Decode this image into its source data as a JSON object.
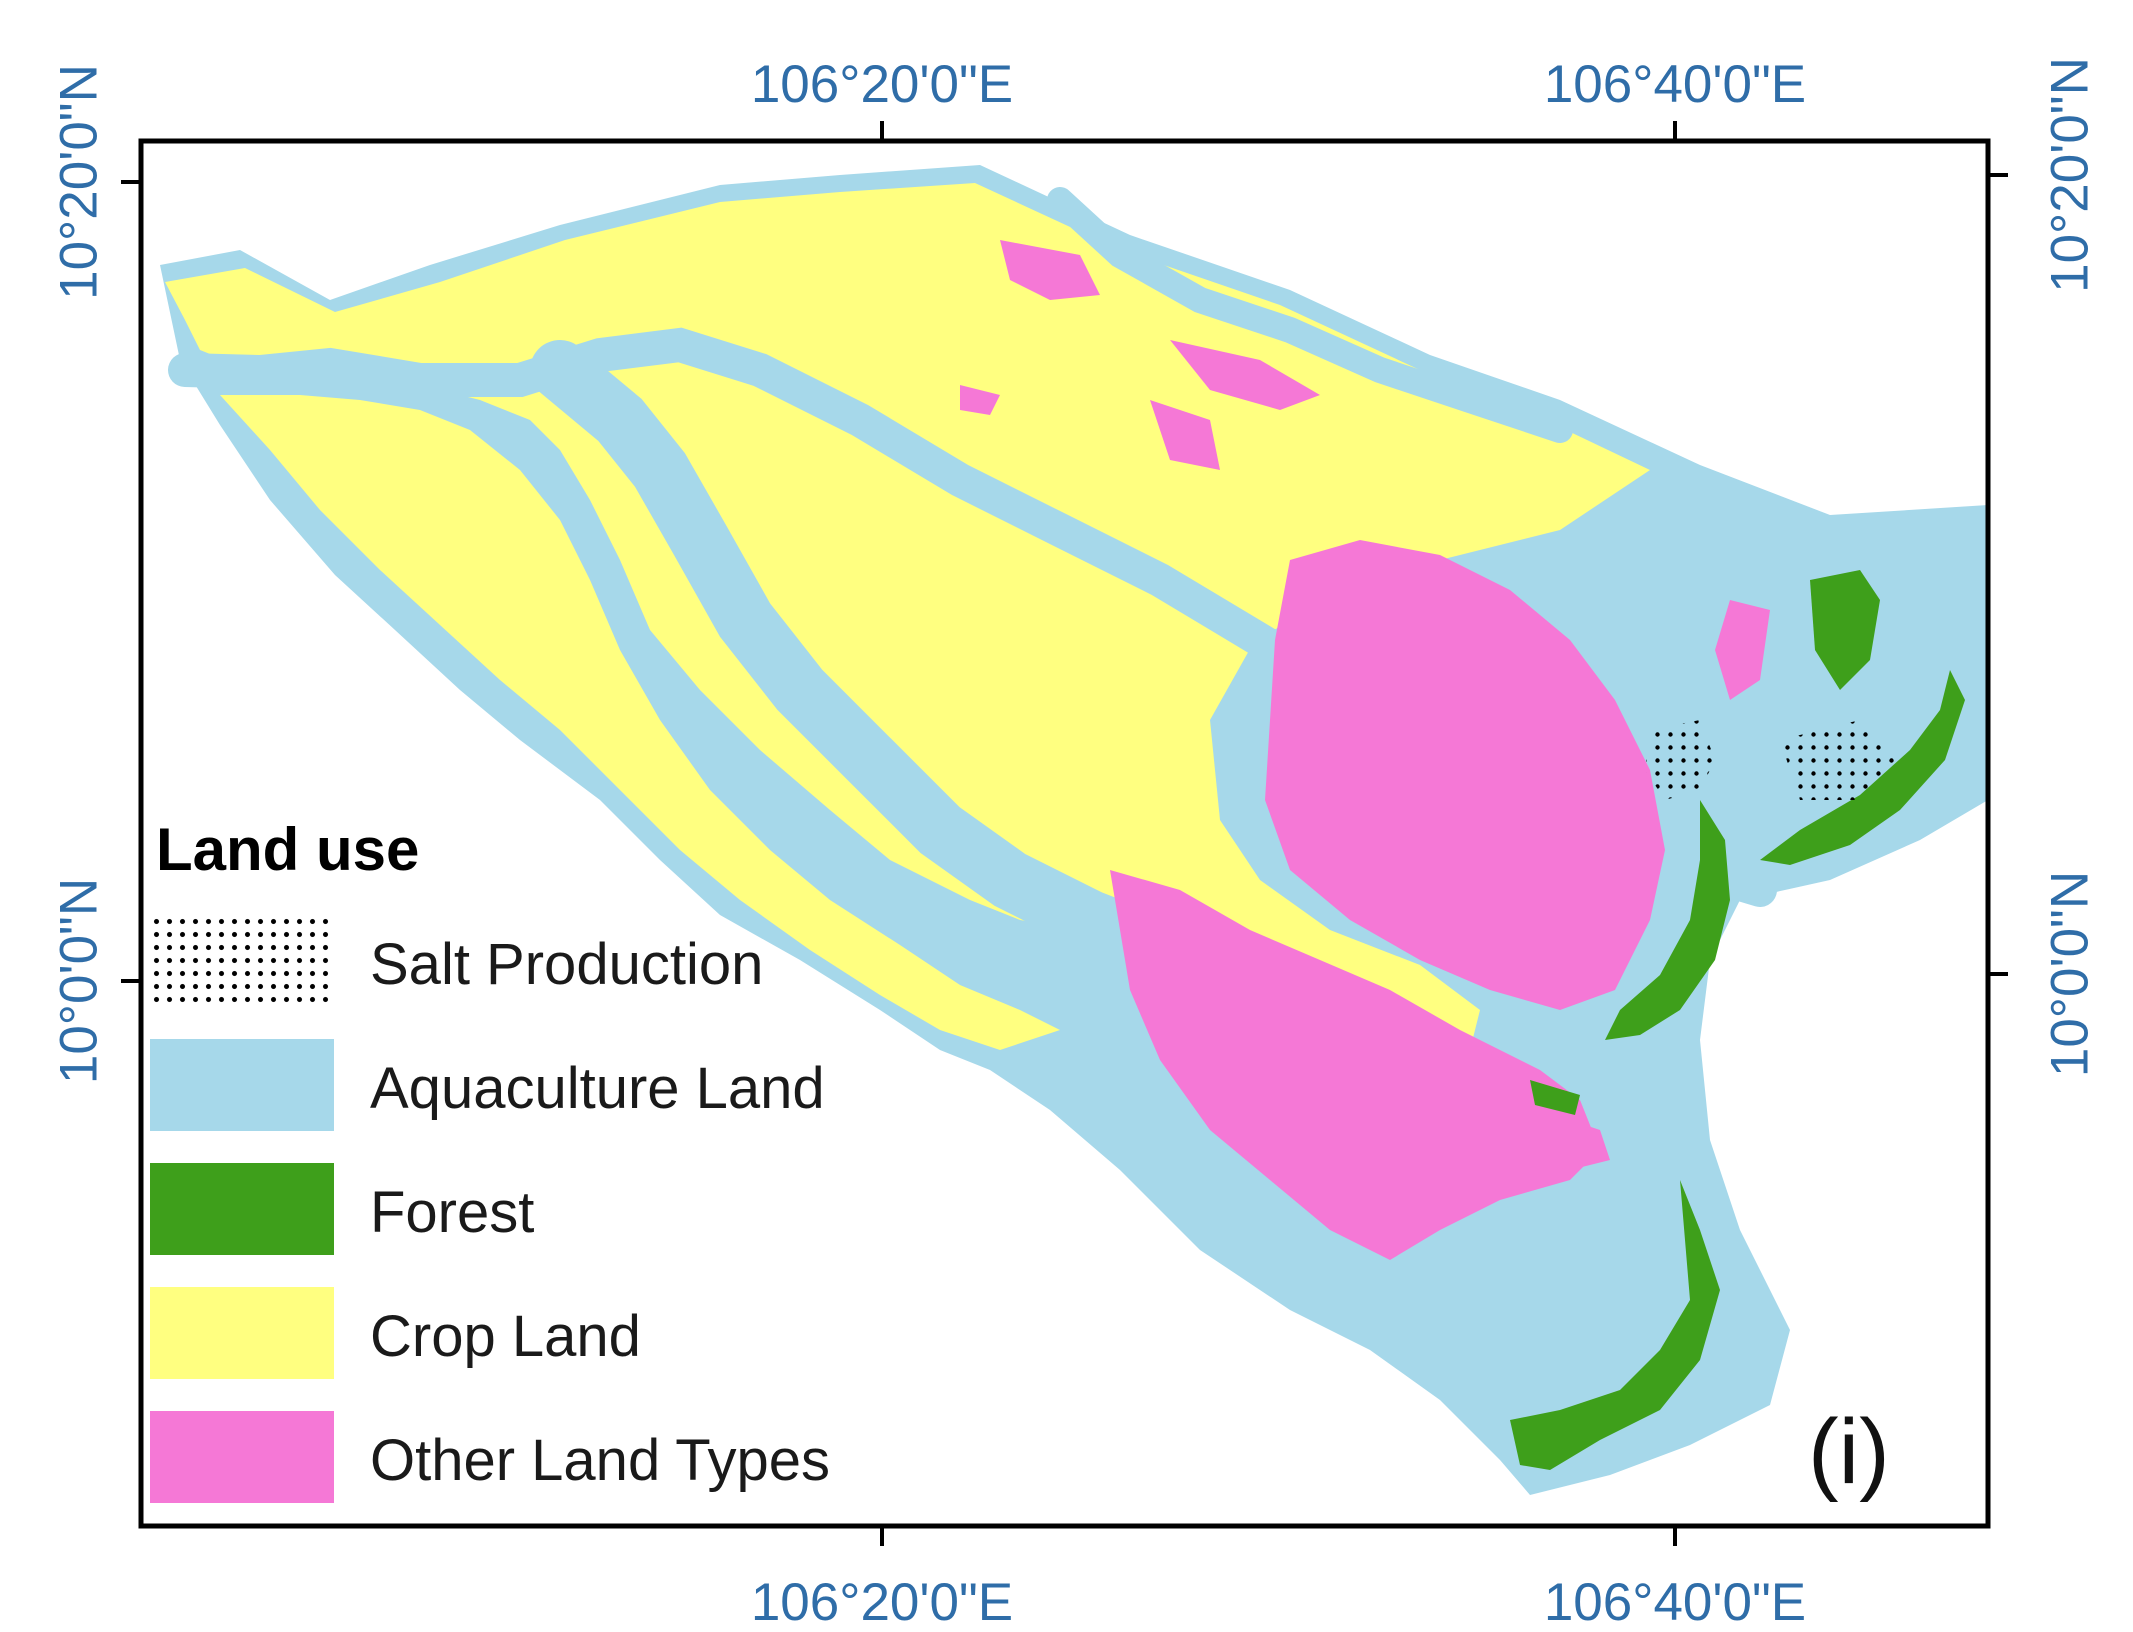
{
  "map": {
    "panel_label": "(i)",
    "top_ticks": [
      "106°20'0\"E",
      "106°40'0\"E"
    ],
    "bottom_ticks": [
      "106°20'0\"E",
      "106°40'0\"E"
    ],
    "left_ticks": [
      "10°20'0\"N",
      "10°0'0\"N"
    ],
    "right_ticks": [
      "10°20'0\"N",
      "10°0'0\"N"
    ],
    "colors": {
      "aquaculture": "#a6d8ea",
      "forest": "#3e9f1b",
      "crop": "#ffff80",
      "other": "#f578d6",
      "frame": "#000000",
      "coordinate_text": "#2f6da8"
    }
  },
  "legend": {
    "title": "Land use",
    "items": [
      {
        "label": "Salt Production",
        "swatch": "dotted"
      },
      {
        "label": "Aquaculture Land",
        "color": "#a6d8ea"
      },
      {
        "label": "Forest",
        "color": "#3e9f1b"
      },
      {
        "label": "Crop Land",
        "color": "#ffff80"
      },
      {
        "label": "Other Land Types",
        "color": "#f578d6"
      }
    ]
  }
}
